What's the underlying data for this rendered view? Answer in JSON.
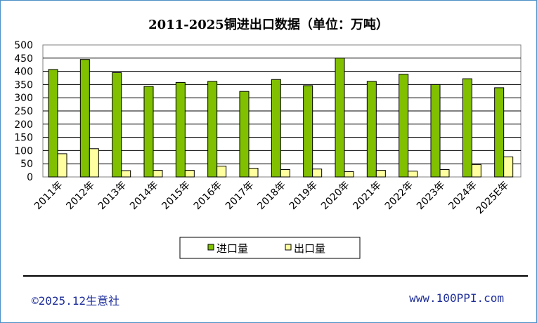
{
  "colors": {
    "import": "#80c000",
    "export": "#ffffa0",
    "frame_border": "#4a90c8",
    "footer_text": "#1f2f9a"
  },
  "chart_data": {
    "type": "bar",
    "title": "2011-2025铜进出口数据（单位：万吨）",
    "categories": [
      "2011年",
      "2012年",
      "2013年",
      "2014年",
      "2015年",
      "2016年",
      "2017年",
      "2018年",
      "2019年",
      "2020年",
      "2021年",
      "2022年",
      "2023年",
      "2024年",
      "2025E年"
    ],
    "series": [
      {
        "name": "进口量",
        "color": "#80c000",
        "values": [
          407,
          445,
          395,
          343,
          358,
          362,
          324,
          369,
          346,
          450,
          362,
          389,
          350,
          372,
          338
        ]
      },
      {
        "name": "出口量",
        "color": "#ffffa0",
        "values": [
          88,
          107,
          24,
          25,
          25,
          41,
          33,
          28,
          30,
          20,
          25,
          22,
          28,
          47,
          76
        ]
      }
    ],
    "ylim": [
      0,
      500
    ],
    "yticks": [
      "500",
      "450",
      "400",
      "350",
      "300",
      "250",
      "200",
      "150",
      "100",
      "50",
      "0"
    ],
    "grid": true,
    "legend_position": "bottom"
  },
  "footer": {
    "left": "©2025.12生意社",
    "right": "www.100PPI.com"
  }
}
